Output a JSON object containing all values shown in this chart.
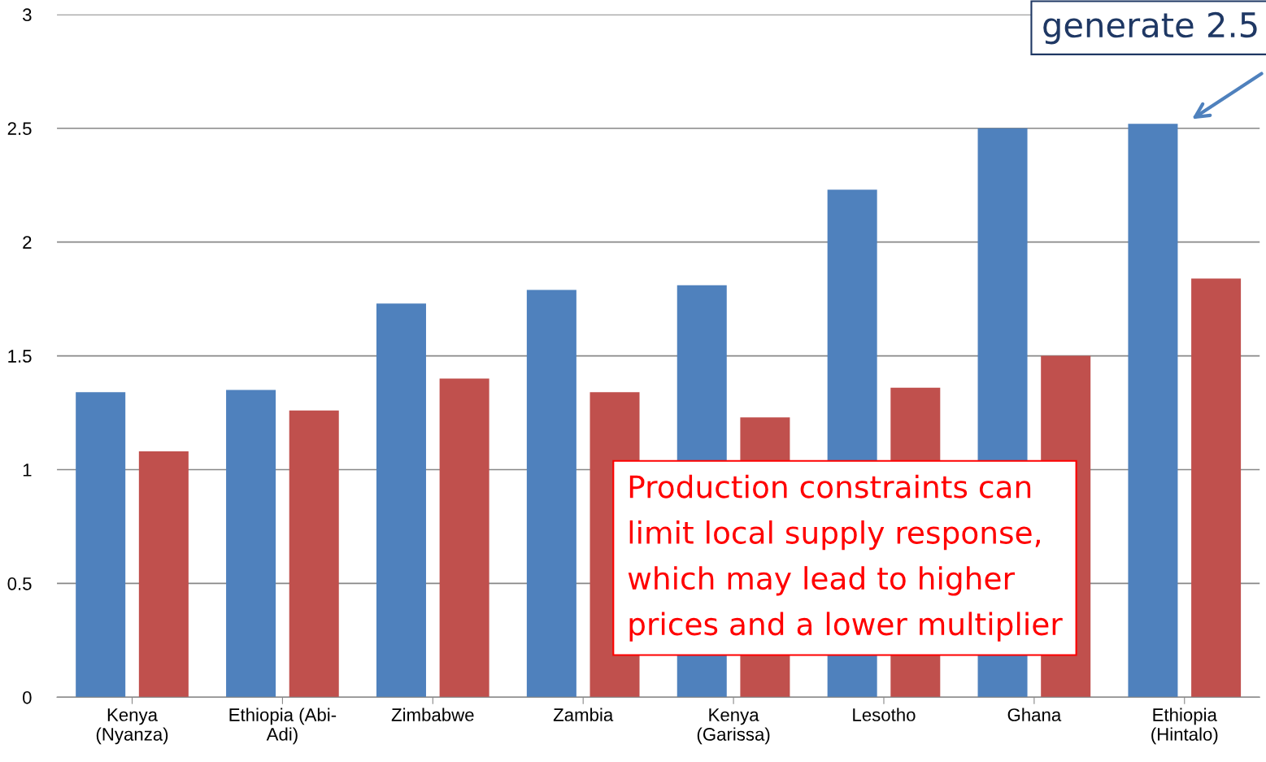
{
  "chart_data": {
    "type": "bar",
    "categories": [
      "Kenya\n(Nyanza)",
      "Ethiopia (Abi-\nAdi)",
      "Zimbabwe",
      "Zambia",
      "Kenya\n(Garissa)",
      "Lesotho",
      "Ghana",
      "Ethiopia\n(Hintalo)"
    ],
    "series": [
      {
        "color": "#4f81bd",
        "values": [
          1.34,
          1.35,
          1.73,
          1.79,
          1.81,
          2.23,
          2.5,
          2.52
        ]
      },
      {
        "color": "#c0504d",
        "values": [
          1.08,
          1.26,
          1.4,
          1.34,
          1.23,
          1.36,
          1.5,
          1.84
        ]
      }
    ],
    "ylim": [
      0,
      3
    ],
    "yticks": [
      0,
      0.5,
      1,
      1.5,
      2,
      2.5,
      3
    ],
    "grid": "y",
    "legend": false,
    "annotations": [
      "generate 2.5",
      "Production constraints can\nlimit local supply response,\nwhich may lead to higher\nprices and a lower multiplier"
    ]
  }
}
